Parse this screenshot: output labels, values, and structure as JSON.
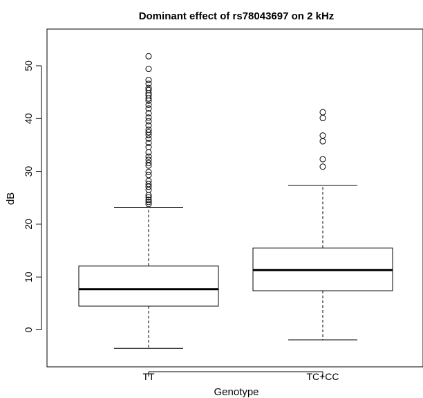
{
  "chart_data": {
    "type": "boxplot",
    "title": "Dominant effect of rs78043697 on 2 kHz",
    "xlabel": "Genotype",
    "ylabel": "dB",
    "ylim": [
      -7,
      56
    ],
    "yticks": [
      0,
      10,
      20,
      30,
      40,
      50
    ],
    "grid": false,
    "categories": [
      "TT",
      "TC+CC"
    ],
    "boxes": [
      {
        "name": "TT",
        "whisker_low": -3.5,
        "q1": 4.5,
        "median": 7.7,
        "q3": 12.1,
        "whisker_high": 23.2,
        "outliers": [
          23.8,
          24.2,
          24.6,
          25.1,
          25.5,
          26.5,
          27.1,
          27.6,
          28.2,
          29.3,
          29.9,
          31.1,
          31.6,
          32.2,
          32.8,
          33.6,
          34.6,
          35.4,
          36.2,
          36.9,
          37.4,
          37.9,
          38.7,
          39.5,
          40.2,
          41.0,
          41.9,
          42.6,
          43.4,
          43.8,
          44.4,
          44.8,
          45.4,
          45.8,
          46.6,
          47.3,
          49.4,
          51.8
        ]
      },
      {
        "name": "TC+CC",
        "whisker_low": -1.9,
        "q1": 7.4,
        "median": 11.3,
        "q3": 15.5,
        "whisker_high": 27.4,
        "outliers": [
          30.9,
          32.3,
          35.7,
          36.8,
          40.1,
          41.2
        ]
      }
    ]
  }
}
